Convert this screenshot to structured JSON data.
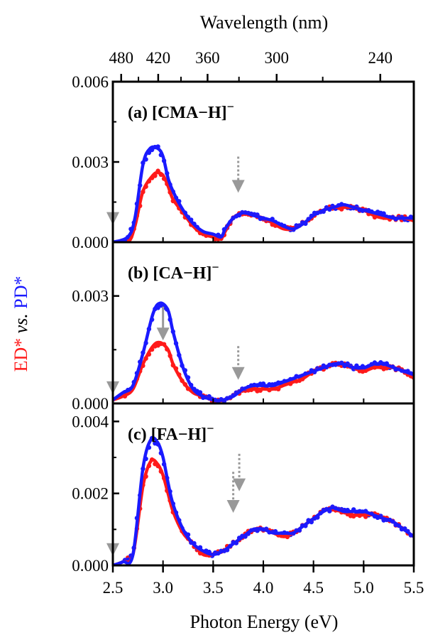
{
  "figure": {
    "top_axis_title": "Wavelength (nm)",
    "bottom_axis_title": "Photon Energy (eV)",
    "ylabel_parts": [
      "ED*",
      " vs. ",
      "PD*"
    ],
    "colors": {
      "ed": "#ff1a1a",
      "pd": "#1a1aff",
      "arrow": "#999999"
    }
  },
  "chart_data": {
    "type": "line",
    "x_axis": {
      "label": "Photon Energy (eV)",
      "range": [
        2.5,
        5.5
      ],
      "ticks": [
        2.5,
        3.0,
        3.5,
        4.0,
        4.5,
        5.0,
        5.5
      ],
      "tick_labels": [
        "2.5",
        "3.0",
        "3.5",
        "4.0",
        "4.5",
        "5.0",
        "5.5"
      ]
    },
    "top_axis": {
      "label": "Wavelength (nm)",
      "ticks": [
        480,
        420,
        360,
        300,
        240
      ],
      "tick_labels": [
        "480",
        "420",
        "360",
        "300",
        "240"
      ]
    },
    "ylabel": "ED* vs. PD*",
    "panels": [
      {
        "label": "(a) [CMA−H]",
        "superscript": "−",
        "ylim": [
          0,
          0.006
        ],
        "ytick_labels": [
          "0.000",
          "0.003",
          "0.006"
        ],
        "ytick_values": [
          0,
          0.003,
          0.006
        ],
        "series": [
          {
            "name": "ED*",
            "color": "#ff1a1a",
            "x": [
              2.5,
              2.65,
              2.72,
              2.8,
              2.9,
              2.95,
              3.0,
              3.05,
              3.1,
              3.2,
              3.3,
              3.4,
              3.5,
              3.58,
              3.62,
              3.7,
              3.8,
              3.9,
              4.0,
              4.1,
              4.2,
              4.3,
              4.4,
              4.5,
              4.6,
              4.7,
              4.8,
              4.9,
              5.0,
              5.1,
              5.2,
              5.3,
              5.4,
              5.5
            ],
            "y": [
              0,
              0,
              0.0006,
              0.0019,
              0.0025,
              0.0026,
              0.0025,
              0.0021,
              0.0016,
              0.0011,
              0.0006,
              0.0003,
              0.0002,
              0.00015,
              0.0004,
              0.0009,
              0.0011,
              0.001,
              0.0009,
              0.0007,
              0.0005,
              0.0005,
              0.0007,
              0.001,
              0.0012,
              0.0013,
              0.0013,
              0.0013,
              0.0012,
              0.001,
              0.0009,
              0.0009,
              0.0009,
              0.0008
            ]
          },
          {
            "name": "PD*",
            "color": "#1a1aff",
            "x": [
              2.5,
              2.65,
              2.72,
              2.8,
              2.87,
              2.95,
              3.0,
              3.05,
              3.1,
              3.2,
              3.3,
              3.4,
              3.5,
              3.58,
              3.62,
              3.7,
              3.8,
              3.9,
              4.0,
              4.1,
              4.2,
              4.3,
              4.4,
              4.5,
              4.6,
              4.7,
              4.8,
              4.9,
              5.0,
              5.1,
              5.2,
              5.3,
              5.4,
              5.5
            ],
            "y": [
              0,
              0.0002,
              0.0009,
              0.0029,
              0.0035,
              0.0035,
              0.0032,
              0.0024,
              0.0019,
              0.0012,
              0.0007,
              0.0004,
              0.0003,
              0.0002,
              0.0005,
              0.0009,
              0.0011,
              0.001,
              0.0009,
              0.0008,
              0.0006,
              0.0005,
              0.0007,
              0.001,
              0.0012,
              0.0013,
              0.0014,
              0.0013,
              0.0012,
              0.0011,
              0.001,
              0.0009,
              0.0009,
              0.0009
            ]
          }
        ],
        "arrows": [
          {
            "x": 2.5,
            "y_from": 0.002,
            "y_to": 0.0007,
            "style": "solid"
          },
          {
            "x": 3.75,
            "y_from": 0.0032,
            "y_to": 0.0019,
            "style": "dotted"
          }
        ]
      },
      {
        "label": "(b) [CA−H]",
        "superscript": "−",
        "ylim": [
          0,
          0.0045
        ],
        "ytick_labels": [
          "0.000",
          "0.003"
        ],
        "ytick_values": [
          0,
          0.003
        ],
        "series": [
          {
            "name": "ED*",
            "color": "#ff1a1a",
            "x": [
              2.5,
              2.6,
              2.7,
              2.8,
              2.9,
              2.97,
              3.05,
              3.1,
              3.2,
              3.3,
              3.4,
              3.5,
              3.6,
              3.7,
              3.8,
              3.9,
              4.0,
              4.1,
              4.2,
              4.3,
              4.4,
              4.5,
              4.6,
              4.7,
              4.8,
              4.9,
              5.0,
              5.1,
              5.2,
              5.3,
              5.4,
              5.5
            ],
            "y": [
              0.0001,
              0.0002,
              0.0004,
              0.0011,
              0.0016,
              0.0017,
              0.0015,
              0.0011,
              0.0006,
              0.0003,
              0.0002,
              0.0001,
              0.0001,
              0.0002,
              0.0004,
              0.0004,
              0.0004,
              0.0004,
              0.0005,
              0.0006,
              0.0007,
              0.0009,
              0.001,
              0.0011,
              0.0011,
              0.001,
              0.0009,
              0.001,
              0.001,
              0.001,
              0.0009,
              0.0007
            ]
          },
          {
            "name": "PD*",
            "color": "#1a1aff",
            "x": [
              2.5,
              2.6,
              2.7,
              2.8,
              2.9,
              2.97,
              3.05,
              3.1,
              3.2,
              3.3,
              3.4,
              3.5,
              3.6,
              3.7,
              3.8,
              3.9,
              4.0,
              4.1,
              4.2,
              4.3,
              4.4,
              4.5,
              4.6,
              4.7,
              4.8,
              4.9,
              5.0,
              5.1,
              5.2,
              5.3,
              5.4,
              5.5
            ],
            "y": [
              0.0001,
              0.0003,
              0.0005,
              0.0014,
              0.0025,
              0.0028,
              0.0026,
              0.002,
              0.001,
              0.0004,
              0.0002,
              0.0001,
              0.0001,
              0.0002,
              0.0004,
              0.0005,
              0.0005,
              0.0005,
              0.0006,
              0.0007,
              0.0008,
              0.0009,
              0.001,
              0.0011,
              0.0011,
              0.001,
              0.001,
              0.0011,
              0.0011,
              0.001,
              0.0009,
              0.0008
            ]
          }
        ],
        "arrows": [
          {
            "x": 2.5,
            "y_from": 0.0014,
            "y_to": 0.0003,
            "style": "solid"
          },
          {
            "x": 3.0,
            "y_from": 0.0027,
            "y_to": 0.0018,
            "style": "solid"
          },
          {
            "x": 3.75,
            "y_from": 0.0016,
            "y_to": 0.0007,
            "style": "dotted"
          }
        ]
      },
      {
        "label": "(c) [FA−H]",
        "superscript": "−",
        "ylim": [
          0,
          0.0045
        ],
        "ytick_labels": [
          "0.000",
          "0.002",
          "0.004"
        ],
        "ytick_values": [
          0,
          0.002,
          0.004
        ],
        "series": [
          {
            "name": "ED*",
            "color": "#ff1a1a",
            "x": [
              2.5,
              2.6,
              2.7,
              2.8,
              2.88,
              2.95,
              3.0,
              3.05,
              3.1,
              3.2,
              3.3,
              3.4,
              3.5,
              3.6,
              3.7,
              3.8,
              3.9,
              4.0,
              4.1,
              4.2,
              4.3,
              4.4,
              4.5,
              4.6,
              4.7,
              4.8,
              4.9,
              5.0,
              5.1,
              5.2,
              5.3,
              5.4,
              5.5
            ],
            "y": [
              0,
              0.0001,
              0.0003,
              0.0022,
              0.0029,
              0.0028,
              0.0025,
              0.002,
              0.0015,
              0.0009,
              0.0006,
              0.0003,
              0.0003,
              0.0004,
              0.0006,
              0.0008,
              0.001,
              0.001,
              0.0009,
              0.0008,
              0.0009,
              0.0011,
              0.0013,
              0.0015,
              0.0016,
              0.0015,
              0.0014,
              0.0014,
              0.0014,
              0.0013,
              0.0012,
              0.001,
              0.0008
            ]
          },
          {
            "name": "PD*",
            "color": "#1a1aff",
            "x": [
              2.5,
              2.6,
              2.7,
              2.8,
              2.88,
              2.95,
              3.0,
              3.05,
              3.1,
              3.2,
              3.3,
              3.4,
              3.5,
              3.6,
              3.7,
              3.8,
              3.9,
              4.0,
              4.1,
              4.2,
              4.3,
              4.4,
              4.5,
              4.6,
              4.7,
              4.8,
              4.9,
              5.0,
              5.1,
              5.2,
              5.3,
              5.4,
              5.5
            ],
            "y": [
              0,
              0.0001,
              0.0003,
              0.0027,
              0.0035,
              0.0034,
              0.003,
              0.0023,
              0.0017,
              0.001,
              0.0006,
              0.0004,
              0.0003,
              0.0004,
              0.0006,
              0.0008,
              0.001,
              0.001,
              0.0009,
              0.0009,
              0.0009,
              0.0011,
              0.0013,
              0.0015,
              0.0016,
              0.0015,
              0.0015,
              0.0015,
              0.0014,
              0.0013,
              0.0012,
              0.001,
              0.0008
            ]
          }
        ],
        "arrows": [
          {
            "x": 2.5,
            "y_from": 0.0017,
            "y_to": 0.0003,
            "style": "solid"
          },
          {
            "x": 3.7,
            "y_from": 0.0026,
            "y_to": 0.0015,
            "style": "dotted"
          },
          {
            "x": 3.76,
            "y_from": 0.0031,
            "y_to": 0.0021,
            "style": "dotted"
          }
        ]
      }
    ],
    "grid": false,
    "legend": "none"
  }
}
